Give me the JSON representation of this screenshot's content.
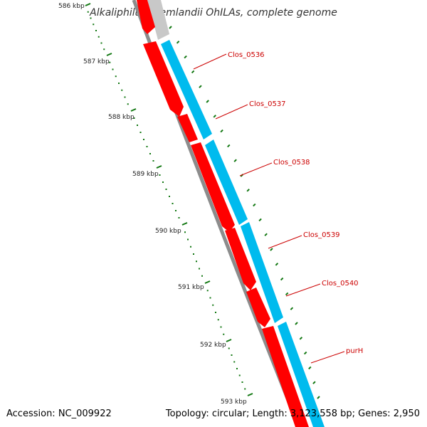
{
  "title": "Alkaliphilus oremlandii OhILAs, complete genome",
  "footer": {
    "accession": "Accession: NC_009922",
    "summary": "Topology: circular; Length: 3,123,558 bp; Genes: 2,950"
  },
  "colors": {
    "forward_gene": "#ff0000",
    "reverse_gene": "#00bbee",
    "backbone": "#999999",
    "ruler": "#117711",
    "label": "#cc0000"
  },
  "ruler_labels": [
    "586 kbp",
    "587 kbp",
    "588 kbp",
    "589 kbp",
    "590 kbp",
    "591 kbp",
    "592 kbp",
    "593 kbp"
  ],
  "genes": [
    {
      "name": "Clos_0536",
      "strand": "reverse"
    },
    {
      "name": "Clos_0537",
      "strand": "reverse"
    },
    {
      "name": "Clos_0538",
      "strand": "reverse"
    },
    {
      "name": "Clos_0539",
      "strand": "reverse"
    },
    {
      "name": "Clos_0540",
      "strand": "reverse"
    },
    {
      "name": "purH",
      "strand": "reverse"
    }
  ]
}
